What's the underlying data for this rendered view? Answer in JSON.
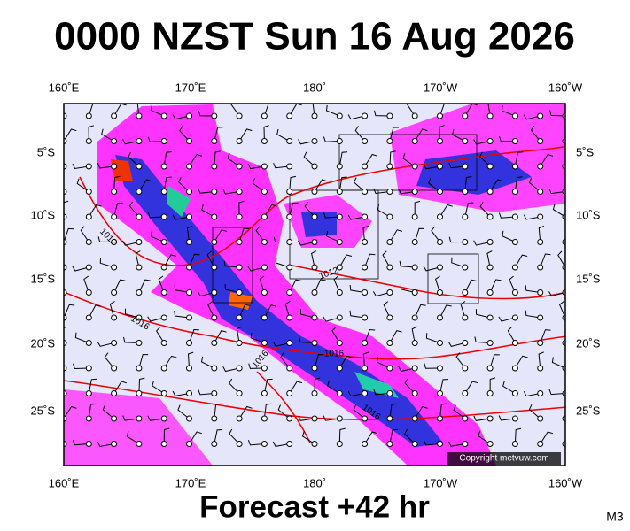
{
  "header": {
    "title": "0000 NZST Sun 16 Aug 2026"
  },
  "longitudes": [
    "160˚E",
    "170˚E",
    "180˚",
    "170˚W",
    "160˚W"
  ],
  "latitudes": [
    "5˚S",
    "10˚S",
    "15˚S",
    "20˚S",
    "25˚S"
  ],
  "contour_labels": [
    "1012",
    "1016",
    "1012",
    "1016",
    "1016",
    "1016"
  ],
  "copyright": "Copyright metvuw.com",
  "footer": {
    "forecast": "Forecast +42 hr",
    "code": "M3"
  }
}
